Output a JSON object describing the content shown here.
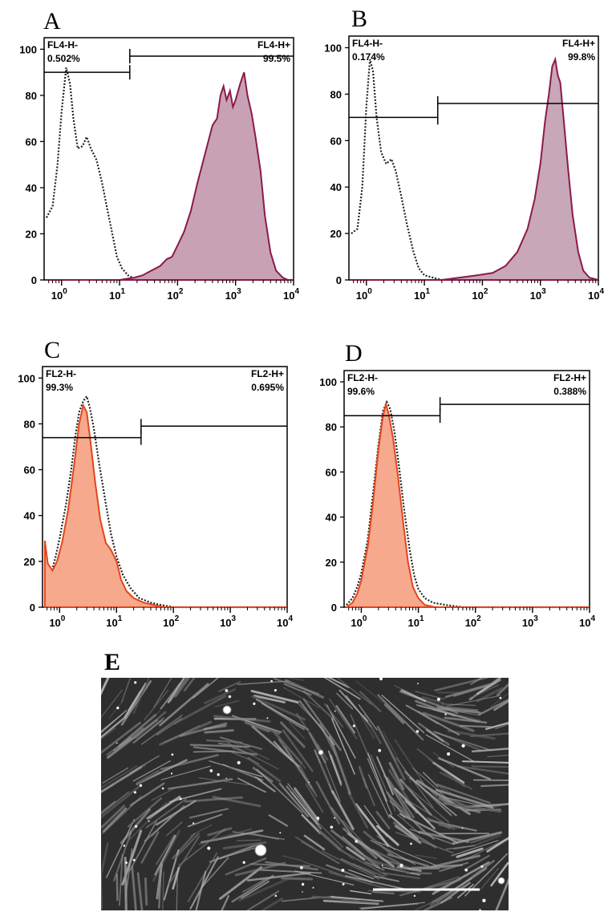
{
  "panels": [
    {
      "letter": "A"
    },
    {
      "letter": "B"
    },
    {
      "letter": "C"
    },
    {
      "letter": "D"
    },
    {
      "letter": "E"
    }
  ],
  "chart_data": [
    {
      "type": "area",
      "panel": "A",
      "x_scale": "log",
      "xlim": [
        0.5,
        10000
      ],
      "ylim": [
        0,
        105
      ],
      "x_ticks": [
        "10^0",
        "10^1",
        "10^2",
        "10^3",
        "10^4"
      ],
      "y_ticks": [
        "0",
        "20",
        "40",
        "60",
        "80",
        "100"
      ],
      "grid": false,
      "gates": {
        "left": {
          "label": "FL4-H-",
          "value": "0.502%"
        },
        "right": {
          "label": "FL4-H+",
          "value": "99.5%"
        },
        "marker_level": 90,
        "right_level": 97,
        "split_x": 15
      },
      "fill_color": "#c9a1b5",
      "line_color": "#8b1a4a",
      "control_color": "#222222",
      "series": [
        {
          "role": "control",
          "style": "dotted",
          "points": [
            [
              0.55,
              27
            ],
            [
              0.7,
              32
            ],
            [
              0.85,
              50
            ],
            [
              1,
              73
            ],
            [
              1.2,
              92
            ],
            [
              1.4,
              85
            ],
            [
              1.6,
              70
            ],
            [
              1.9,
              57
            ],
            [
              2.3,
              58
            ],
            [
              2.7,
              62
            ],
            [
              3.2,
              57
            ],
            [
              4,
              52
            ],
            [
              5,
              42
            ],
            [
              6,
              32
            ],
            [
              7.5,
              20
            ],
            [
              9,
              10
            ],
            [
              11,
              5
            ],
            [
              14,
              2
            ],
            [
              20,
              0
            ],
            [
              50,
              0
            ],
            [
              10000,
              0
            ]
          ]
        },
        {
          "role": "sample",
          "style": "filled",
          "points": [
            [
              0.55,
              0
            ],
            [
              10,
              0
            ],
            [
              18,
              1
            ],
            [
              25,
              2
            ],
            [
              35,
              4
            ],
            [
              50,
              6
            ],
            [
              65,
              9
            ],
            [
              80,
              10
            ],
            [
              100,
              15
            ],
            [
              130,
              21
            ],
            [
              170,
              30
            ],
            [
              220,
              42
            ],
            [
              300,
              55
            ],
            [
              400,
              67
            ],
            [
              480,
              70
            ],
            [
              550,
              80
            ],
            [
              620,
              84
            ],
            [
              700,
              78
            ],
            [
              800,
              82
            ],
            [
              900,
              75
            ],
            [
              1000,
              78
            ],
            [
              1200,
              85
            ],
            [
              1400,
              90
            ],
            [
              1600,
              80
            ],
            [
              1900,
              72
            ],
            [
              2200,
              62
            ],
            [
              2700,
              47
            ],
            [
              3200,
              28
            ],
            [
              4000,
              12
            ],
            [
              5000,
              4
            ],
            [
              6500,
              1
            ],
            [
              8000,
              0
            ],
            [
              10000,
              0
            ]
          ]
        }
      ]
    },
    {
      "type": "area",
      "panel": "B",
      "x_scale": "log",
      "xlim": [
        0.5,
        10000
      ],
      "ylim": [
        0,
        105
      ],
      "x_ticks": [
        "10^0",
        "10^1",
        "10^2",
        "10^3",
        "10^4"
      ],
      "y_ticks": [
        "0",
        "20",
        "40",
        "60",
        "80",
        "100"
      ],
      "grid": false,
      "gates": {
        "left": {
          "label": "FL4-H-",
          "value": "0.174%"
        },
        "right": {
          "label": "FL4-H+",
          "value": "99.8%"
        },
        "marker_level": 70,
        "right_level": 76,
        "split_x": 17
      },
      "fill_color": "#c8a7b8",
      "line_color": "#8b1a4a",
      "control_color": "#222222",
      "series": [
        {
          "role": "control",
          "style": "dotted",
          "points": [
            [
              0.55,
              20
            ],
            [
              0.7,
              22
            ],
            [
              0.85,
              40
            ],
            [
              1,
              75
            ],
            [
              1.15,
              95
            ],
            [
              1.3,
              90
            ],
            [
              1.5,
              70
            ],
            [
              1.8,
              55
            ],
            [
              2.2,
              50
            ],
            [
              2.7,
              52
            ],
            [
              3.2,
              47
            ],
            [
              4,
              36
            ],
            [
              5,
              24
            ],
            [
              6.5,
              12
            ],
            [
              8,
              5
            ],
            [
              10,
              2
            ],
            [
              14,
              1
            ],
            [
              20,
              0
            ],
            [
              10000,
              0
            ]
          ]
        },
        {
          "role": "sample",
          "style": "filled",
          "points": [
            [
              0.55,
              0
            ],
            [
              20,
              0
            ],
            [
              40,
              1
            ],
            [
              80,
              2
            ],
            [
              150,
              3
            ],
            [
              250,
              6
            ],
            [
              400,
              12
            ],
            [
              600,
              22
            ],
            [
              800,
              35
            ],
            [
              1000,
              50
            ],
            [
              1200,
              68
            ],
            [
              1400,
              80
            ],
            [
              1600,
              92
            ],
            [
              1800,
              95
            ],
            [
              2000,
              88
            ],
            [
              2200,
              85
            ],
            [
              2500,
              70
            ],
            [
              3000,
              48
            ],
            [
              3600,
              28
            ],
            [
              4500,
              12
            ],
            [
              5500,
              4
            ],
            [
              7000,
              1
            ],
            [
              10000,
              0
            ]
          ]
        }
      ]
    },
    {
      "type": "area",
      "panel": "C",
      "x_scale": "log",
      "xlim": [
        0.5,
        10000
      ],
      "ylim": [
        0,
        105
      ],
      "x_ticks": [
        "10^0",
        "10^1",
        "10^2",
        "10^3",
        "10^4"
      ],
      "y_ticks": [
        "0",
        "20",
        "40",
        "60",
        "80",
        "100"
      ],
      "grid": false,
      "gates": {
        "left": {
          "label": "FL2-H-",
          "value": "99.3%"
        },
        "right": {
          "label": "FL2-H+",
          "value": "0.695%"
        },
        "marker_level": 74,
        "right_level": 79,
        "split_x": 27
      },
      "fill_color": "#f6a98d",
      "line_color": "#e1461c",
      "control_color": "#222222",
      "series": [
        {
          "role": "control",
          "style": "dotted",
          "points": [
            [
              0.55,
              10
            ],
            [
              0.7,
              14
            ],
            [
              0.85,
              22
            ],
            [
              1,
              30
            ],
            [
              1.3,
              45
            ],
            [
              1.6,
              60
            ],
            [
              1.9,
              75
            ],
            [
              2.2,
              85
            ],
            [
              2.6,
              90
            ],
            [
              3,
              92
            ],
            [
              3.4,
              87
            ],
            [
              4,
              78
            ],
            [
              5,
              62
            ],
            [
              6.5,
              45
            ],
            [
              8,
              32
            ],
            [
              10,
              22
            ],
            [
              13,
              14
            ],
            [
              18,
              8
            ],
            [
              25,
              4
            ],
            [
              40,
              2
            ],
            [
              60,
              1
            ],
            [
              100,
              0
            ],
            [
              10000,
              0
            ]
          ]
        },
        {
          "role": "sample",
          "style": "filled",
          "points": [
            [
              0.55,
              29
            ],
            [
              0.62,
              19
            ],
            [
              0.75,
              16
            ],
            [
              0.9,
              20
            ],
            [
              1.1,
              28
            ],
            [
              1.4,
              42
            ],
            [
              1.8,
              62
            ],
            [
              2.2,
              80
            ],
            [
              2.6,
              88
            ],
            [
              3,
              85
            ],
            [
              3.5,
              72
            ],
            [
              4.2,
              55
            ],
            [
              5.2,
              38
            ],
            [
              6.5,
              28
            ],
            [
              8,
              25
            ],
            [
              10,
              20
            ],
            [
              12,
              12
            ],
            [
              15,
              7
            ],
            [
              20,
              4
            ],
            [
              30,
              2
            ],
            [
              45,
              1
            ],
            [
              70,
              0
            ],
            [
              10000,
              0
            ]
          ]
        }
      ]
    },
    {
      "type": "area",
      "panel": "D",
      "x_scale": "log",
      "xlim": [
        0.5,
        10000
      ],
      "ylim": [
        0,
        105
      ],
      "x_ticks": [
        "10^0",
        "10^1",
        "10^2",
        "10^3",
        "10^4"
      ],
      "y_ticks": [
        "0",
        "20",
        "40",
        "60",
        "80",
        "100"
      ],
      "grid": false,
      "gates": {
        "left": {
          "label": "FL2-H-",
          "value": "99.6%"
        },
        "right": {
          "label": "FL2-H+",
          "value": "0.388%"
        },
        "marker_level": 85,
        "right_level": 90,
        "split_x": 24
      },
      "fill_color": "#f6a98d",
      "line_color": "#e1461c",
      "control_color": "#222222",
      "series": [
        {
          "role": "control",
          "style": "dotted",
          "points": [
            [
              0.55,
              1
            ],
            [
              0.7,
              4
            ],
            [
              0.85,
              9
            ],
            [
              1,
              15
            ],
            [
              1.3,
              30
            ],
            [
              1.6,
              50
            ],
            [
              2,
              72
            ],
            [
              2.4,
              87
            ],
            [
              2.8,
              91
            ],
            [
              3.2,
              88
            ],
            [
              3.8,
              78
            ],
            [
              4.6,
              62
            ],
            [
              5.6,
              44
            ],
            [
              7,
              26
            ],
            [
              8.5,
              14
            ],
            [
              10,
              8
            ],
            [
              13,
              4
            ],
            [
              18,
              2
            ],
            [
              30,
              1
            ],
            [
              60,
              0
            ],
            [
              10000,
              0
            ]
          ]
        },
        {
          "role": "sample",
          "style": "filled",
          "points": [
            [
              0.55,
              0
            ],
            [
              0.7,
              2
            ],
            [
              0.85,
              6
            ],
            [
              1,
              12
            ],
            [
              1.3,
              27
            ],
            [
              1.6,
              46
            ],
            [
              2,
              70
            ],
            [
              2.4,
              85
            ],
            [
              2.7,
              90
            ],
            [
              3,
              86
            ],
            [
              3.6,
              75
            ],
            [
              4.4,
              58
            ],
            [
              5.4,
              38
            ],
            [
              6.6,
              20
            ],
            [
              8,
              9
            ],
            [
              10,
              4
            ],
            [
              13,
              1
            ],
            [
              20,
              0
            ],
            [
              10000,
              0
            ]
          ]
        }
      ]
    }
  ],
  "micrograph": {
    "panel": "E",
    "description_colors": {
      "background": "#2e2e2e",
      "cells": "#9a9a9a",
      "scale_bar": "#ffffff"
    }
  }
}
